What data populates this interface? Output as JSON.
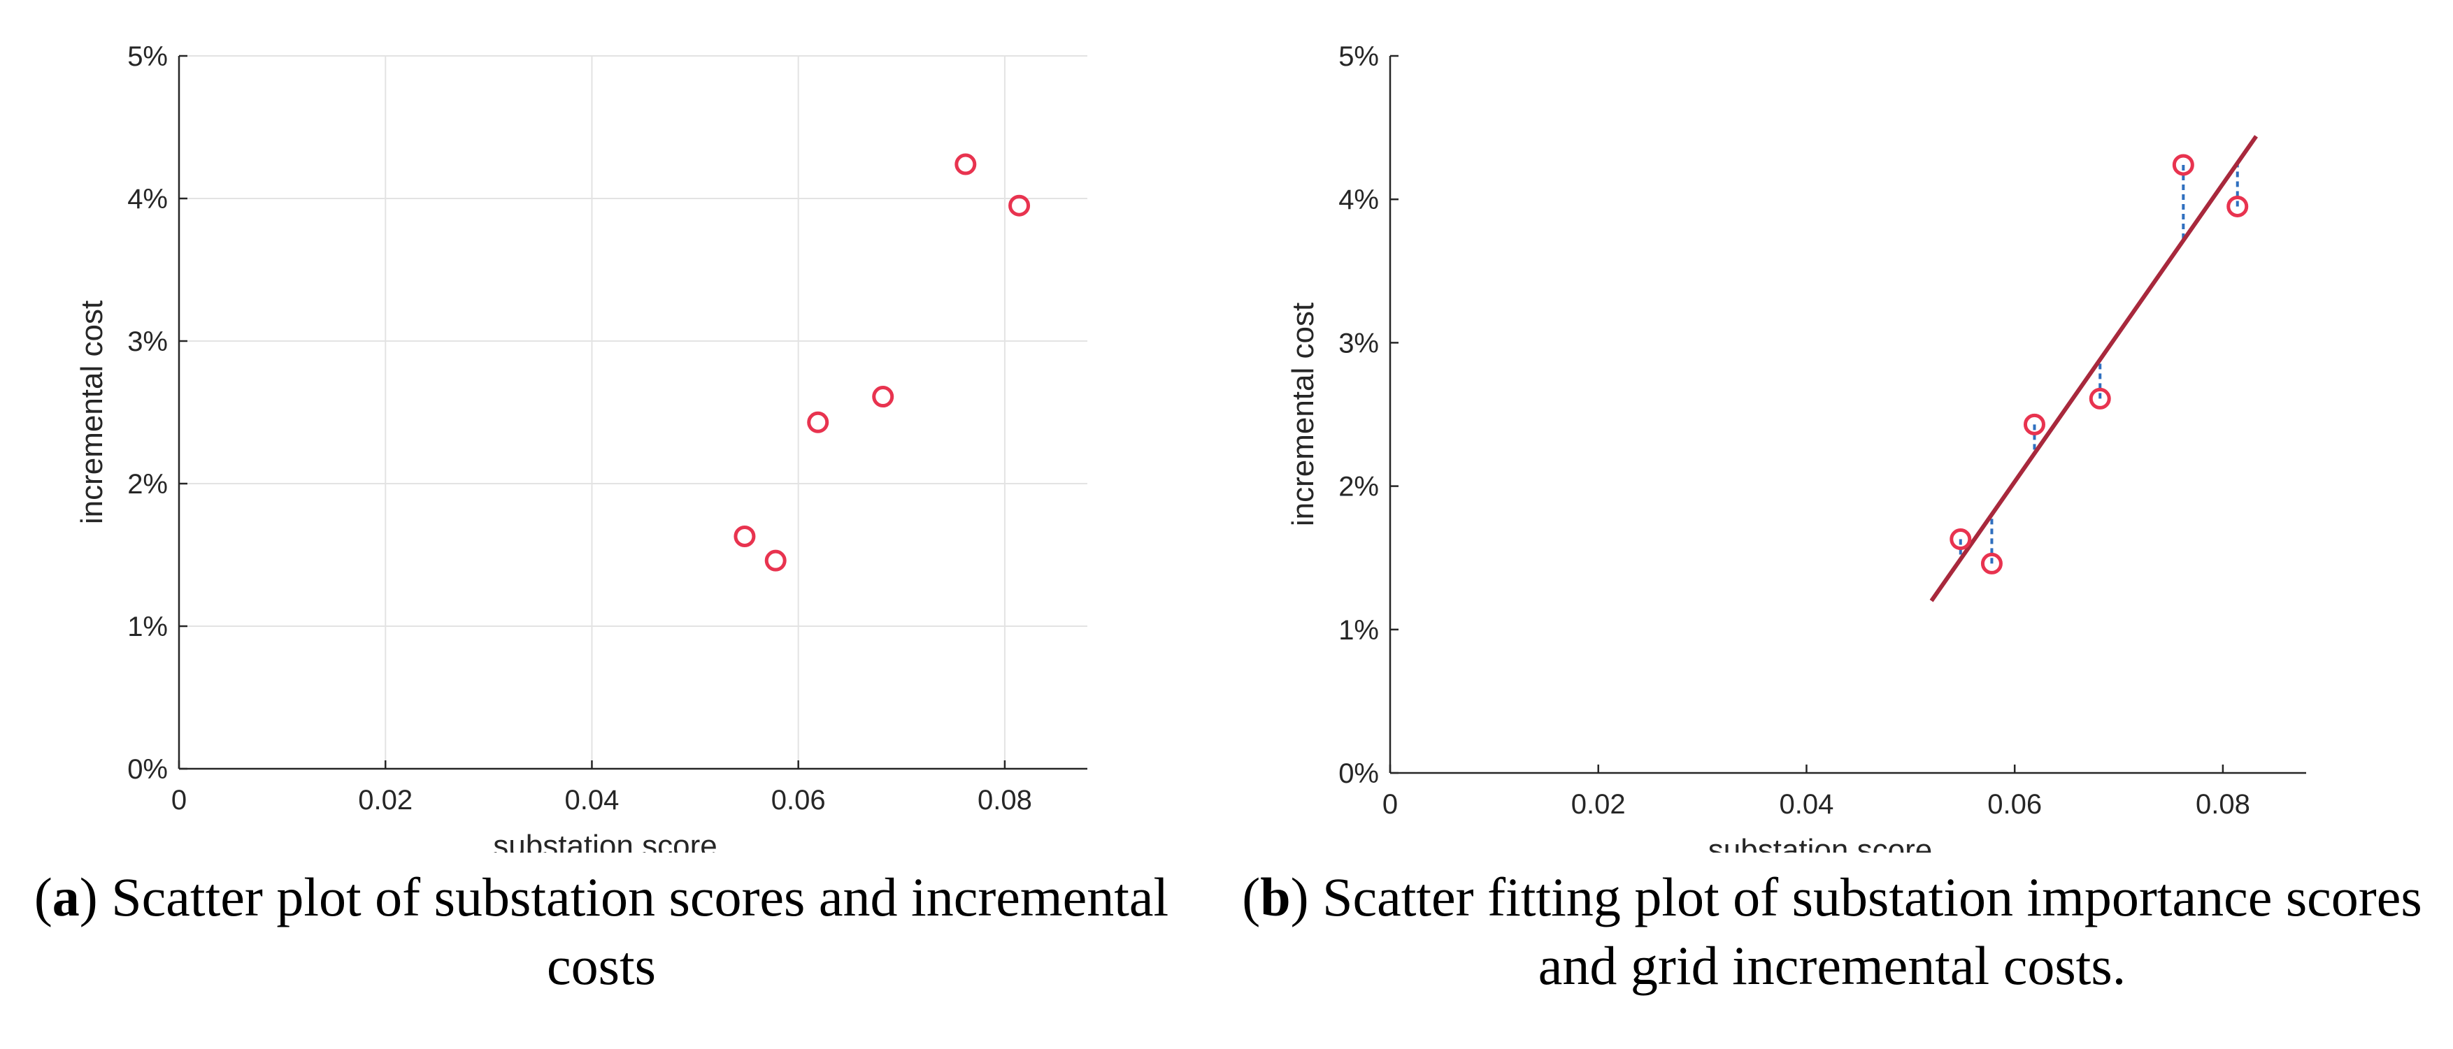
{
  "chart_data": [
    {
      "type": "scatter",
      "panel": "a",
      "xlabel": "substation score",
      "ylabel": "incremental cost",
      "xlim": [
        0,
        0.088
      ],
      "ylim": [
        0,
        5
      ],
      "xticks": [
        0,
        0.02,
        0.04,
        0.06,
        0.08
      ],
      "xtick_labels": [
        "0",
        "0.02",
        "0.04",
        "0.06",
        "0.08"
      ],
      "yticks": [
        0,
        1,
        2,
        3,
        4,
        5
      ],
      "ytick_labels": [
        "0%",
        "1%",
        "2%",
        "3%",
        "4%",
        "5%"
      ],
      "grid": true,
      "points": [
        {
          "x": 0.0548,
          "y": 1.63
        },
        {
          "x": 0.0578,
          "y": 1.46
        },
        {
          "x": 0.0619,
          "y": 2.43
        },
        {
          "x": 0.0682,
          "y": 2.61
        },
        {
          "x": 0.0762,
          "y": 4.24
        },
        {
          "x": 0.0814,
          "y": 3.95
        }
      ],
      "marker_color": "#e8334f"
    },
    {
      "type": "scatter",
      "panel": "b",
      "xlabel": "substation score",
      "ylabel": "incremental cost",
      "xlim": [
        0,
        0.088
      ],
      "ylim": [
        0,
        5
      ],
      "xticks": [
        0,
        0.02,
        0.04,
        0.06,
        0.08
      ],
      "xtick_labels": [
        "0",
        "0.02",
        "0.04",
        "0.06",
        "0.08"
      ],
      "yticks": [
        0,
        1,
        2,
        3,
        4,
        5
      ],
      "ytick_labels": [
        "0%",
        "1%",
        "2%",
        "3%",
        "4%",
        "5%"
      ],
      "grid": false,
      "points": [
        {
          "x": 0.0548,
          "y": 1.63
        },
        {
          "x": 0.0578,
          "y": 1.46
        },
        {
          "x": 0.0619,
          "y": 2.43
        },
        {
          "x": 0.0682,
          "y": 2.61
        },
        {
          "x": 0.0762,
          "y": 4.24
        },
        {
          "x": 0.0814,
          "y": 3.95
        }
      ],
      "fit_line": {
        "x": [
          0.052,
          0.0832
        ],
        "y": [
          1.2,
          4.44
        ]
      },
      "marker_color": "#e8334f",
      "fit_line_color": "#a8283c",
      "residual_color": "#2f6fbf"
    }
  ],
  "captions": {
    "a": {
      "letter": "a",
      "text": ") Scatter plot of substation scores and incremental costs"
    },
    "b": {
      "letter": "b",
      "text": ") Scatter fitting plot of substation importance scores and grid incremental costs."
    }
  }
}
